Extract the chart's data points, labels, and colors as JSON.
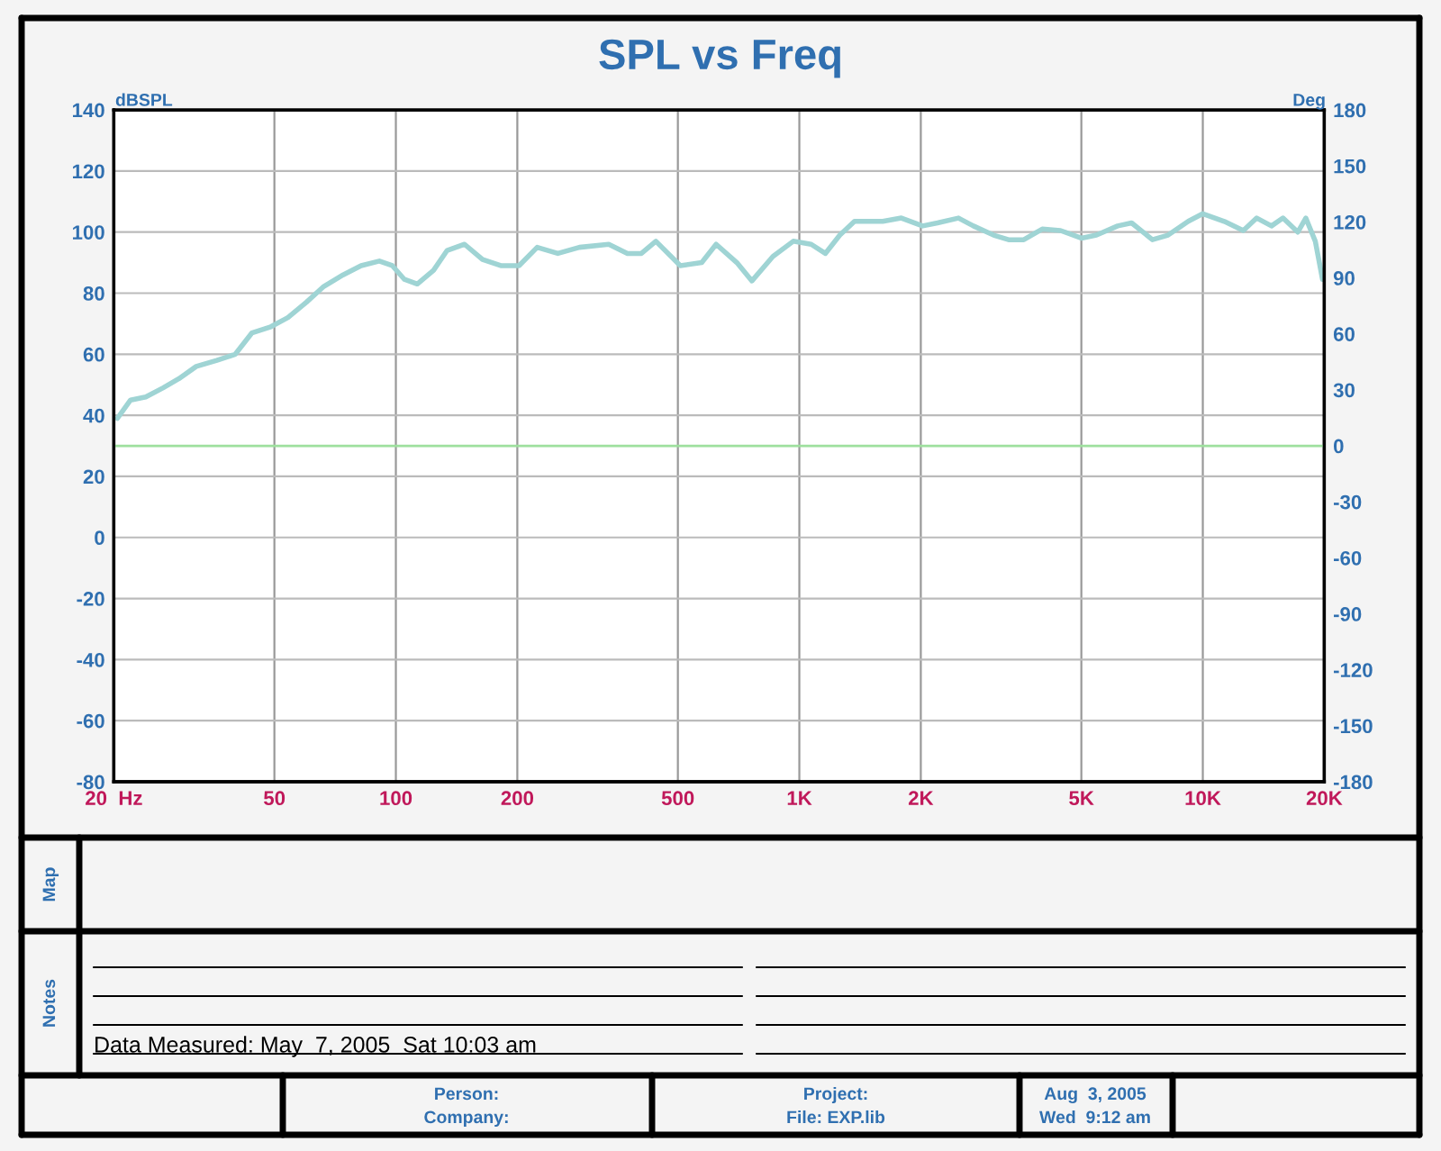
{
  "chart_data": {
    "type": "line",
    "title": "SPL vs Freq",
    "ylabel": "dBSPL",
    "y2label": "Deg",
    "x": [
      20.4,
      22,
      24,
      26.5,
      29,
      32,
      36,
      40,
      44,
      49,
      54,
      60,
      66,
      74,
      82,
      91,
      98,
      105,
      113,
      124,
      134,
      148,
      164,
      182,
      202,
      224,
      252,
      285,
      337,
      375,
      406,
      441,
      507,
      573,
      622,
      700,
      763,
      860,
      966,
      1070,
      1160,
      1260,
      1370,
      1610,
      1790,
      2020,
      2200,
      2480,
      2700,
      3030,
      3300,
      3600,
      4000,
      4440,
      5000,
      5450,
      6150,
      6660,
      7500,
      8200,
      9200,
      10000,
      11300,
      12600,
      13600,
      14800,
      15800,
      17200,
      18000,
      19000,
      19800
    ],
    "series": [
      {
        "color": "#9fd4d4",
        "values": [
          39,
          45,
          46,
          49,
          52,
          56,
          58,
          60,
          67,
          69,
          72,
          77,
          82,
          86,
          89,
          90.5,
          89,
          84.5,
          83,
          87.5,
          94,
          96,
          91,
          89,
          89,
          95,
          93,
          95,
          96,
          93,
          93,
          97,
          89,
          90,
          96,
          90,
          84,
          92,
          97,
          96,
          93,
          99,
          103.5,
          103.5,
          104.6,
          102,
          103,
          104.6,
          102,
          99,
          97.5,
          97.5,
          101,
          100.5,
          98,
          99,
          102,
          103,
          97.5,
          99,
          103.5,
          106,
          103.5,
          100.5,
          104.6,
          102,
          104.6,
          100,
          104.6,
          97,
          84.5
        ]
      }
    ],
    "log": "x",
    "xlim": [
      20,
      20000
    ],
    "xticks": [
      {
        "value": 20,
        "label": "20  Hz"
      },
      50,
      100,
      200,
      500,
      {
        "value": 1000,
        "label": "1K"
      },
      {
        "value": 2000,
        "label": "2K"
      },
      {
        "value": 5000,
        "label": "5K"
      },
      {
        "value": 10000,
        "label": "10K"
      },
      {
        "value": 20000,
        "label": "20K"
      }
    ],
    "ylim": [
      -80,
      140
    ],
    "yticks": [
      -80,
      -60,
      -40,
      -20,
      0,
      20,
      40,
      60,
      80,
      100,
      120,
      140
    ],
    "y2lim": [
      -180,
      180
    ],
    "y2ticks": [
      -180,
      -150,
      -120,
      -90,
      -60,
      -30,
      0,
      30,
      60,
      90,
      120,
      150,
      180
    ],
    "ref_lines": [
      {
        "axis": "y2",
        "value": 0,
        "color": "#9ee09e"
      }
    ],
    "grid": true,
    "marker": "none",
    "line_style": "solid",
    "annotations": [
      "Map",
      "Notes",
      "Data Measured: May  7, 2005  Sat 10:03 am",
      "Person:",
      "Company:",
      "Project:",
      "File: EXP.lib",
      "Aug  3, 2005",
      "Wed  9:12 am"
    ]
  }
}
